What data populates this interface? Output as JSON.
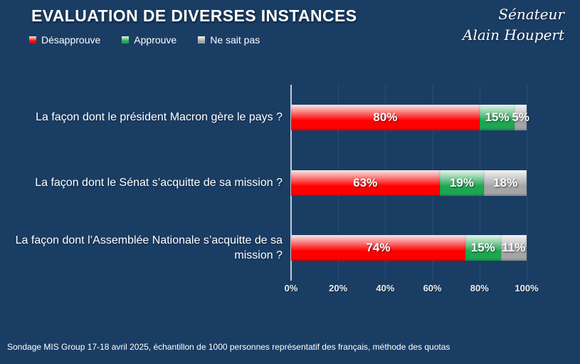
{
  "title": "EVALUATION DE DIVERSES INSTANCES",
  "signature": {
    "line1": "Sénateur",
    "line2": "Alain Houpert"
  },
  "footer": "Sondage MIS Group 17-18 avril 2025, échantillon de 1000 personnes représentatif des français, méthode des quotas",
  "colors": {
    "background": "#1A3D64",
    "gridline": "#2B4D73",
    "axis_line": "#C3CCD4",
    "text": "#FFFFFF",
    "desapprouve": "#FF0000",
    "approuve": "#1FA651",
    "ne_sait_pas": "#A5A5A5"
  },
  "chart_data": {
    "type": "bar",
    "orientation": "horizontal",
    "stacked": true,
    "title": "EVALUATION DE DIVERSES INSTANCES",
    "categories": [
      "La façon dont le président Macron gère le pays ?",
      "La façon dont le Sénat s’acquitte de sa mission ?",
      "La façon dont l’Assemblée Nationale s’acquitte de sa mission ?"
    ],
    "series": [
      {
        "name": "Désapprouve",
        "color": "#FF0000",
        "color_top": "#F6E9E9",
        "values": [
          80,
          63,
          74
        ]
      },
      {
        "name": "Approuve",
        "color": "#1FA651",
        "color_top": "#EAF5EC",
        "values": [
          15,
          19,
          15
        ]
      },
      {
        "name": "Ne sait pas",
        "color": "#A5A5A5",
        "color_top": "#F4F4F4",
        "values": [
          5,
          18,
          11
        ]
      }
    ],
    "value_suffix": "%",
    "x_ticks": [
      {
        "label": "0%",
        "value": 0
      },
      {
        "label": "20%",
        "value": 20
      },
      {
        "label": "40%",
        "value": 40
      },
      {
        "label": "60%",
        "value": 60
      },
      {
        "label": "80%",
        "value": 80
      },
      {
        "label": "100%",
        "value": 100
      }
    ],
    "xlim": [
      0,
      100
    ],
    "grid": true,
    "legend_position": "top-left"
  }
}
